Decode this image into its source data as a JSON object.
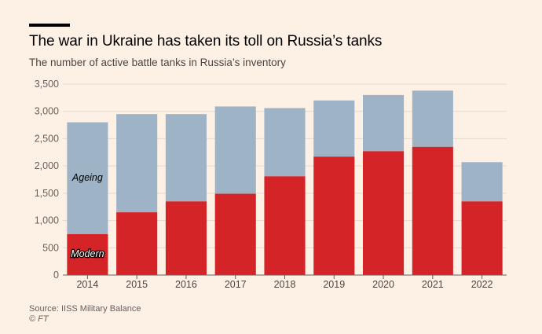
{
  "header": {
    "title": "The war in Ukraine has taken its toll on Russia’s tanks",
    "subtitle": "The number of active battle tanks in Russia’s inventory"
  },
  "footer": {
    "source": "Source: IISS Military Balance",
    "credit": "© FT"
  },
  "chart_data": {
    "type": "bar",
    "stacked": true,
    "categories": [
      "2014",
      "2015",
      "2016",
      "2017",
      "2018",
      "2019",
      "2020",
      "2021",
      "2022"
    ],
    "series": [
      {
        "name": "Modern",
        "color": "#d42428",
        "values": [
          750,
          1150,
          1350,
          1490,
          1810,
          2170,
          2270,
          2350,
          1350
        ]
      },
      {
        "name": "Ageing",
        "color": "#9eb3c5",
        "values": [
          2050,
          1800,
          1600,
          1600,
          1250,
          1030,
          1030,
          1030,
          720
        ]
      }
    ],
    "ylim": [
      0,
      3500
    ],
    "yticks": [
      0,
      500,
      1000,
      1500,
      2000,
      2500,
      3000,
      3500
    ],
    "ytick_labels": [
      "0",
      "500",
      "1,000",
      "1,500",
      "2,000",
      "2,500",
      "3,000",
      "3,500"
    ],
    "grid": true,
    "xlabel": "",
    "ylabel": "",
    "series_labels": {
      "modern": "Modern",
      "ageing": "Ageing"
    }
  }
}
